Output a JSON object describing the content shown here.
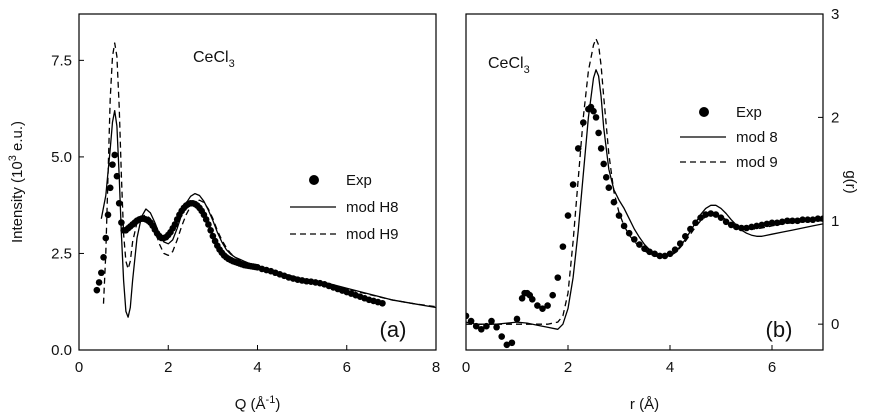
{
  "chart_data": [
    {
      "type": "line",
      "panel_label": "(a)",
      "annotation": {
        "base": "CeCl",
        "sub": "3"
      },
      "xlabel": {
        "base": "Q (Å",
        "sup": "-1",
        "tail": ")"
      },
      "ylabel": {
        "base": "Intensity (10",
        "sup": "3",
        "tail": " e.u.)"
      },
      "xlim": [
        0,
        8
      ],
      "ylim": [
        0,
        8.7
      ],
      "xticks": [
        0,
        2,
        4,
        6,
        8
      ],
      "xtick_labels": [
        "0",
        "2",
        "4",
        "6",
        "8"
      ],
      "yticks": [
        0,
        2.5,
        5,
        7.5
      ],
      "ytick_labels": [
        "0.0",
        "2.5",
        "5.0",
        "7.5"
      ],
      "legend_position": "center-right",
      "series": [
        {
          "name": "Exp",
          "style": "dots",
          "x": [
            0.4,
            0.45,
            0.5,
            0.55,
            0.6,
            0.65,
            0.7,
            0.75,
            0.8,
            0.85,
            0.9,
            0.95,
            1.0,
            1.05,
            1.1,
            1.15,
            1.2,
            1.25,
            1.3,
            1.35,
            1.4,
            1.45,
            1.5,
            1.55,
            1.6,
            1.65,
            1.7,
            1.75,
            1.8,
            1.85,
            1.9,
            1.95,
            2.0,
            2.05,
            2.1,
            2.15,
            2.2,
            2.25,
            2.3,
            2.35,
            2.4,
            2.45,
            2.5,
            2.55,
            2.6,
            2.65,
            2.7,
            2.75,
            2.8,
            2.85,
            2.9,
            2.95,
            3.0,
            3.05,
            3.1,
            3.15,
            3.2,
            3.25,
            3.3,
            3.35,
            3.4,
            3.45,
            3.5,
            3.55,
            3.6,
            3.65,
            3.7,
            3.75,
            3.8,
            3.85,
            3.9,
            3.95,
            4.0,
            4.1,
            4.2,
            4.3,
            4.4,
            4.5,
            4.6,
            4.7,
            4.8,
            4.9,
            5.0,
            5.1,
            5.2,
            5.3,
            5.4,
            5.5,
            5.6,
            5.7,
            5.8,
            5.9,
            6.0,
            6.1,
            6.2,
            6.3,
            6.4,
            6.5,
            6.6,
            6.7,
            6.8
          ],
          "y": [
            1.55,
            1.75,
            2.0,
            2.4,
            2.9,
            3.5,
            4.2,
            4.8,
            5.05,
            4.5,
            3.8,
            3.3,
            3.1,
            3.1,
            3.15,
            3.2,
            3.25,
            3.3,
            3.35,
            3.38,
            3.4,
            3.4,
            3.38,
            3.35,
            3.3,
            3.22,
            3.12,
            3.02,
            2.95,
            2.9,
            2.9,
            2.92,
            2.98,
            3.05,
            3.15,
            3.25,
            3.38,
            3.5,
            3.6,
            3.68,
            3.74,
            3.78,
            3.8,
            3.8,
            3.78,
            3.74,
            3.68,
            3.6,
            3.5,
            3.38,
            3.25,
            3.1,
            2.95,
            2.82,
            2.7,
            2.6,
            2.52,
            2.45,
            2.4,
            2.36,
            2.33,
            2.3,
            2.28,
            2.26,
            2.24,
            2.22,
            2.2,
            2.19,
            2.18,
            2.17,
            2.16,
            2.15,
            2.14,
            2.1,
            2.07,
            2.04,
            2.0,
            1.96,
            1.92,
            1.88,
            1.85,
            1.82,
            1.8,
            1.78,
            1.77,
            1.75,
            1.73,
            1.7,
            1.66,
            1.62,
            1.58,
            1.54,
            1.5,
            1.46,
            1.42,
            1.38,
            1.34,
            1.3,
            1.27,
            1.24,
            1.21
          ]
        },
        {
          "name": "mod H8",
          "style": "solid",
          "x": [
            0.5,
            0.6,
            0.7,
            0.75,
            0.8,
            0.85,
            0.9,
            0.95,
            1.0,
            1.05,
            1.1,
            1.15,
            1.2,
            1.3,
            1.4,
            1.5,
            1.6,
            1.7,
            1.8,
            1.9,
            2.0,
            2.1,
            2.2,
            2.3,
            2.4,
            2.5,
            2.6,
            2.7,
            2.8,
            2.9,
            3.0,
            3.1,
            3.2,
            3.3,
            3.4,
            3.5,
            3.6,
            3.7,
            3.8,
            4.0,
            4.2,
            4.5,
            5.0,
            5.5,
            6.0,
            6.5,
            7.0,
            7.5,
            8.0
          ],
          "y": [
            3.4,
            4.0,
            5.2,
            5.9,
            6.2,
            5.8,
            4.5,
            3.0,
            1.8,
            1.0,
            0.85,
            1.1,
            1.8,
            2.9,
            3.45,
            3.65,
            3.55,
            3.3,
            3.0,
            2.8,
            2.75,
            2.85,
            3.15,
            3.5,
            3.8,
            3.98,
            4.05,
            4.0,
            3.85,
            3.62,
            3.35,
            3.05,
            2.8,
            2.6,
            2.48,
            2.4,
            2.35,
            2.3,
            2.25,
            2.18,
            2.1,
            2.0,
            1.85,
            1.75,
            1.6,
            1.45,
            1.3,
            1.2,
            1.1
          ]
        },
        {
          "name": "mod H9",
          "style": "dashed",
          "x": [
            0.55,
            0.6,
            0.65,
            0.7,
            0.75,
            0.8,
            0.85,
            0.9,
            0.95,
            1.0,
            1.05,
            1.1,
            1.15,
            1.2,
            1.3,
            1.4,
            1.5,
            1.6,
            1.7,
            1.8,
            1.9,
            2.0,
            2.1,
            2.2,
            2.3,
            2.4,
            2.5,
            2.6,
            2.7,
            2.8,
            2.9,
            3.0,
            3.1,
            3.2,
            3.3,
            3.4,
            3.5,
            3.6,
            3.7,
            3.8,
            4.0,
            4.2,
            4.5,
            5.0,
            5.5,
            6.0,
            6.5,
            7.0,
            7.5,
            8.0
          ],
          "y": [
            1.2,
            2.5,
            4.5,
            6.5,
            7.6,
            7.95,
            7.6,
            6.3,
            4.5,
            3.0,
            2.3,
            2.1,
            2.3,
            2.8,
            3.3,
            3.45,
            3.5,
            3.4,
            3.1,
            2.75,
            2.5,
            2.45,
            2.55,
            2.85,
            3.2,
            3.5,
            3.72,
            3.85,
            3.88,
            3.82,
            3.65,
            3.4,
            3.1,
            2.85,
            2.65,
            2.5,
            2.4,
            2.33,
            2.27,
            2.22,
            2.14,
            2.06,
            1.98,
            1.85,
            1.72,
            1.58,
            1.44,
            1.3,
            1.2,
            1.12
          ]
        }
      ]
    },
    {
      "type": "line",
      "panel_label": "(b)",
      "annotation": {
        "base": "CeCl",
        "sub": "3"
      },
      "xlabel": {
        "base": "r (Å)",
        "sup": "",
        "tail": ""
      },
      "ylabel": {
        "base": "g(r)",
        "sup": "",
        "tail": ""
      },
      "xlim": [
        0,
        7
      ],
      "ylim": [
        -0.25,
        3
      ],
      "xticks": [
        0,
        2,
        4,
        6
      ],
      "xtick_labels": [
        "0",
        "2",
        "4",
        "6"
      ],
      "yticks": [
        0,
        1,
        2,
        3
      ],
      "ytick_labels": [
        "0",
        "1",
        "2",
        "3"
      ],
      "legend_position": "top-right",
      "series": [
        {
          "name": "Exp",
          "style": "dots",
          "x": [
            0.0,
            0.1,
            0.2,
            0.3,
            0.4,
            0.5,
            0.6,
            0.7,
            0.8,
            0.9,
            1.0,
            1.1,
            1.15,
            1.2,
            1.25,
            1.3,
            1.4,
            1.5,
            1.6,
            1.7,
            1.8,
            1.9,
            2.0,
            2.1,
            2.2,
            2.3,
            2.4,
            2.45,
            2.5,
            2.55,
            2.6,
            2.65,
            2.7,
            2.75,
            2.8,
            2.9,
            3.0,
            3.1,
            3.2,
            3.3,
            3.4,
            3.5,
            3.6,
            3.7,
            3.8,
            3.9,
            4.0,
            4.1,
            4.2,
            4.3,
            4.4,
            4.5,
            4.6,
            4.7,
            4.8,
            4.9,
            5.0,
            5.1,
            5.2,
            5.3,
            5.4,
            5.5,
            5.6,
            5.7,
            5.8,
            5.9,
            6.0,
            6.1,
            6.2,
            6.3,
            6.4,
            6.5,
            6.6,
            6.7,
            6.8,
            6.9,
            7.0
          ],
          "y": [
            0.08,
            0.03,
            -0.02,
            -0.05,
            -0.02,
            0.03,
            -0.03,
            -0.12,
            -0.2,
            -0.18,
            0.05,
            0.25,
            0.3,
            0.3,
            0.28,
            0.24,
            0.18,
            0.15,
            0.18,
            0.28,
            0.45,
            0.75,
            1.05,
            1.35,
            1.7,
            1.95,
            2.08,
            2.1,
            2.06,
            2.0,
            1.85,
            1.7,
            1.55,
            1.42,
            1.32,
            1.18,
            1.05,
            0.95,
            0.88,
            0.82,
            0.77,
            0.73,
            0.7,
            0.68,
            0.66,
            0.66,
            0.68,
            0.72,
            0.78,
            0.85,
            0.92,
            0.98,
            1.03,
            1.06,
            1.07,
            1.06,
            1.03,
            0.99,
            0.96,
            0.94,
            0.93,
            0.93,
            0.94,
            0.95,
            0.96,
            0.97,
            0.98,
            0.98,
            0.99,
            1.0,
            1.0,
            1.0,
            1.01,
            1.01,
            1.01,
            1.02,
            1.02
          ]
        },
        {
          "name": "mod 8",
          "style": "solid",
          "x": [
            0.0,
            0.2,
            0.4,
            0.6,
            0.8,
            1.0,
            1.2,
            1.4,
            1.6,
            1.8,
            1.9,
            2.0,
            2.1,
            2.2,
            2.3,
            2.4,
            2.5,
            2.55,
            2.6,
            2.65,
            2.7,
            2.8,
            2.9,
            3.0,
            3.1,
            3.2,
            3.3,
            3.4,
            3.5,
            3.6,
            3.7,
            3.8,
            3.9,
            4.0,
            4.1,
            4.2,
            4.3,
            4.4,
            4.5,
            4.6,
            4.7,
            4.8,
            4.9,
            5.0,
            5.1,
            5.2,
            5.3,
            5.4,
            5.5,
            5.6,
            5.7,
            5.8,
            5.9,
            6.0,
            6.2,
            6.4,
            6.6,
            6.8,
            7.0
          ],
          "y": [
            0.02,
            0.0,
            0.0,
            0.0,
            0.01,
            0.02,
            0.01,
            -0.01,
            -0.03,
            -0.05,
            0.0,
            0.15,
            0.45,
            0.9,
            1.45,
            2.0,
            2.38,
            2.46,
            2.4,
            2.2,
            1.9,
            1.5,
            1.3,
            1.2,
            1.12,
            1.02,
            0.92,
            0.84,
            0.77,
            0.72,
            0.68,
            0.66,
            0.66,
            0.67,
            0.7,
            0.75,
            0.82,
            0.9,
            0.98,
            1.06,
            1.12,
            1.15,
            1.15,
            1.12,
            1.07,
            1.01,
            0.96,
            0.91,
            0.88,
            0.86,
            0.85,
            0.85,
            0.86,
            0.87,
            0.89,
            0.91,
            0.93,
            0.95,
            0.97
          ]
        },
        {
          "name": "mod 9",
          "style": "dashed",
          "x": [
            0.0,
            0.2,
            0.4,
            0.6,
            0.8,
            1.0,
            1.2,
            1.4,
            1.6,
            1.8,
            1.9,
            2.0,
            2.1,
            2.2,
            2.3,
            2.4,
            2.5,
            2.55,
            2.6,
            2.65,
            2.7,
            2.8,
            2.9,
            3.0,
            3.1,
            3.2,
            3.3,
            3.4,
            3.5,
            3.6,
            3.7,
            3.8,
            3.9,
            4.0,
            4.1,
            4.2,
            4.3,
            4.4,
            4.5,
            4.6,
            4.7,
            4.8,
            4.9,
            5.0,
            5.1,
            5.2,
            5.3,
            5.4,
            5.5,
            5.6,
            5.7,
            5.8,
            5.9,
            6.0,
            6.2,
            6.4,
            6.6,
            6.8,
            7.0
          ],
          "y": [
            0.0,
            0.0,
            0.0,
            0.0,
            0.0,
            0.0,
            0.0,
            0.0,
            0.0,
            0.02,
            0.08,
            0.3,
            0.8,
            1.4,
            2.0,
            2.45,
            2.7,
            2.76,
            2.7,
            2.5,
            2.2,
            1.65,
            1.28,
            1.08,
            0.95,
            0.86,
            0.8,
            0.75,
            0.71,
            0.68,
            0.66,
            0.65,
            0.65,
            0.66,
            0.69,
            0.74,
            0.8,
            0.87,
            0.94,
            1.0,
            1.04,
            1.06,
            1.06,
            1.04,
            1.01,
            0.98,
            0.95,
            0.93,
            0.92,
            0.92,
            0.92,
            0.93,
            0.94,
            0.95,
            0.97,
            0.98,
            0.99,
            1.0,
            1.0
          ]
        }
      ]
    }
  ]
}
